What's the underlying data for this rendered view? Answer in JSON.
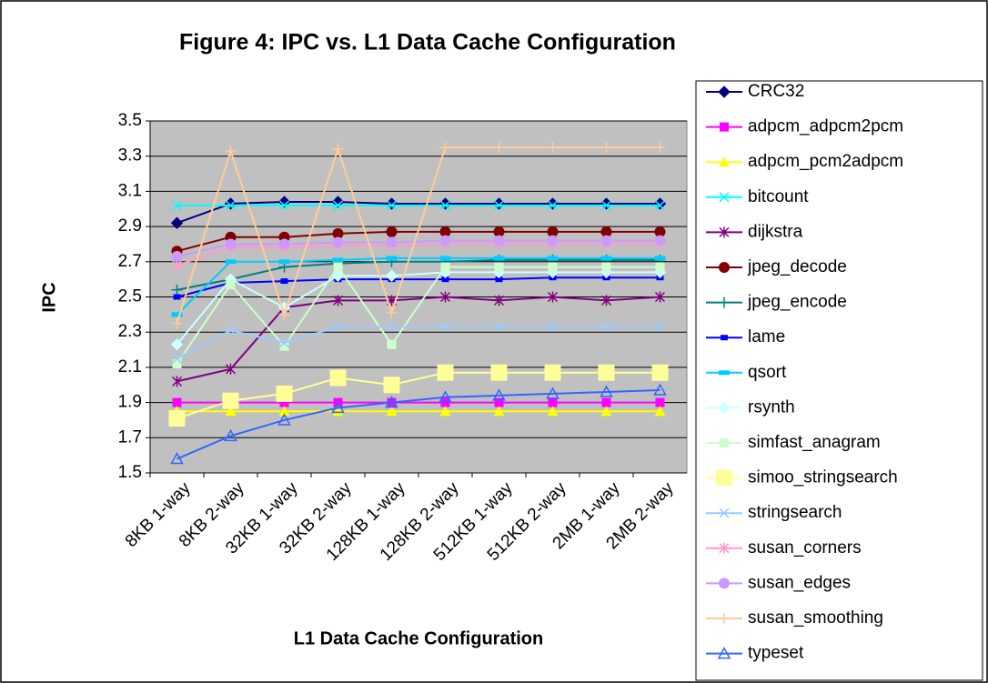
{
  "chart_data": {
    "type": "line",
    "title": "Figure 4: IPC vs. L1 Data Cache Configuration",
    "xlabel": "L1 Data Cache Configuration",
    "ylabel": "IPC",
    "categories": [
      "8KB 1-way",
      "8KB 2-way",
      "32KB 1-way",
      "32KB 2-way",
      "128KB 1-way",
      "128KB 2-way",
      "512KB 1-way",
      "512KB 2-way",
      "2MB 1-way",
      "2MB 2-way"
    ],
    "ylim": [
      1.5,
      3.5
    ],
    "yticks": [
      1.5,
      1.7,
      1.9,
      2.1,
      2.3,
      2.5,
      2.7,
      2.9,
      3.1,
      3.3,
      3.5
    ],
    "grid": true,
    "legend": "right",
    "series": [
      {
        "name": "CRC32",
        "color": "#000080",
        "marker": "diamond",
        "values": [
          2.92,
          3.03,
          3.04,
          3.04,
          3.03,
          3.03,
          3.03,
          3.03,
          3.03,
          3.03
        ]
      },
      {
        "name": "adpcm_adpcm2pcm",
        "color": "#ff00ff",
        "marker": "square",
        "values": [
          1.9,
          1.9,
          1.9,
          1.9,
          1.9,
          1.9,
          1.9,
          1.9,
          1.9,
          1.9
        ]
      },
      {
        "name": "adpcm_pcm2adpcm",
        "color": "#ffff00",
        "marker": "triangle",
        "values": [
          1.85,
          1.85,
          1.85,
          1.85,
          1.85,
          1.85,
          1.85,
          1.85,
          1.85,
          1.85
        ]
      },
      {
        "name": "bitcount",
        "color": "#00ffff",
        "marker": "x",
        "values": [
          3.02,
          3.02,
          3.02,
          3.02,
          3.02,
          3.02,
          3.02,
          3.02,
          3.02,
          3.02
        ]
      },
      {
        "name": "dijkstra",
        "color": "#800080",
        "marker": "star",
        "values": [
          2.02,
          2.09,
          2.44,
          2.48,
          2.48,
          2.5,
          2.48,
          2.5,
          2.48,
          2.5
        ]
      },
      {
        "name": "jpeg_decode",
        "color": "#800000",
        "marker": "circle",
        "values": [
          2.76,
          2.84,
          2.84,
          2.86,
          2.87,
          2.87,
          2.87,
          2.87,
          2.87,
          2.87
        ]
      },
      {
        "name": "jpeg_encode",
        "color": "#008080",
        "marker": "plus",
        "values": [
          2.54,
          2.6,
          2.67,
          2.69,
          2.7,
          2.7,
          2.71,
          2.71,
          2.71,
          2.71
        ]
      },
      {
        "name": "lame",
        "color": "#0000ff",
        "marker": "rect",
        "values": [
          2.5,
          2.58,
          2.59,
          2.6,
          2.6,
          2.6,
          2.6,
          2.61,
          2.61,
          2.61
        ]
      },
      {
        "name": "qsort",
        "color": "#00ccff",
        "marker": "dash",
        "values": [
          2.4,
          2.7,
          2.7,
          2.71,
          2.72,
          2.72,
          2.72,
          2.72,
          2.72,
          2.72
        ]
      },
      {
        "name": "rsynth",
        "color": "#ccffff",
        "marker": "diamond",
        "values": [
          2.23,
          2.6,
          2.44,
          2.62,
          2.62,
          2.64,
          2.64,
          2.64,
          2.64,
          2.64
        ]
      },
      {
        "name": "simfast_anagram",
        "color": "#ccffcc",
        "marker": "square",
        "values": [
          2.12,
          2.57,
          2.22,
          2.67,
          2.23,
          2.67,
          2.67,
          2.67,
          2.67,
          2.67
        ]
      },
      {
        "name": "simoo_stringsearch",
        "color": "#ffff99",
        "marker": "bigsquare",
        "values": [
          1.81,
          1.91,
          1.95,
          2.04,
          2.0,
          2.07,
          2.07,
          2.07,
          2.07,
          2.07
        ]
      },
      {
        "name": "stringsearch",
        "color": "#99ccff",
        "marker": "x",
        "values": [
          2.15,
          2.31,
          2.24,
          2.33,
          2.33,
          2.33,
          2.33,
          2.33,
          2.33,
          2.33
        ]
      },
      {
        "name": "susan_corners",
        "color": "#ff99cc",
        "marker": "star",
        "values": [
          2.68,
          2.78,
          2.78,
          2.79,
          2.79,
          2.8,
          2.8,
          2.8,
          2.8,
          2.8
        ]
      },
      {
        "name": "susan_edges",
        "color": "#cc99ff",
        "marker": "circle",
        "values": [
          2.73,
          2.8,
          2.8,
          2.81,
          2.81,
          2.82,
          2.82,
          2.82,
          2.82,
          2.82
        ]
      },
      {
        "name": "susan_smoothing",
        "color": "#ffcc99",
        "marker": "plus",
        "values": [
          2.35,
          3.33,
          2.4,
          3.34,
          2.41,
          3.35,
          3.35,
          3.35,
          3.35,
          3.35
        ]
      },
      {
        "name": "typeset",
        "color": "#3366ff",
        "marker": "opentriangle",
        "values": [
          1.58,
          1.71,
          1.8,
          1.87,
          1.9,
          1.93,
          1.94,
          1.95,
          1.96,
          1.97
        ]
      }
    ]
  }
}
